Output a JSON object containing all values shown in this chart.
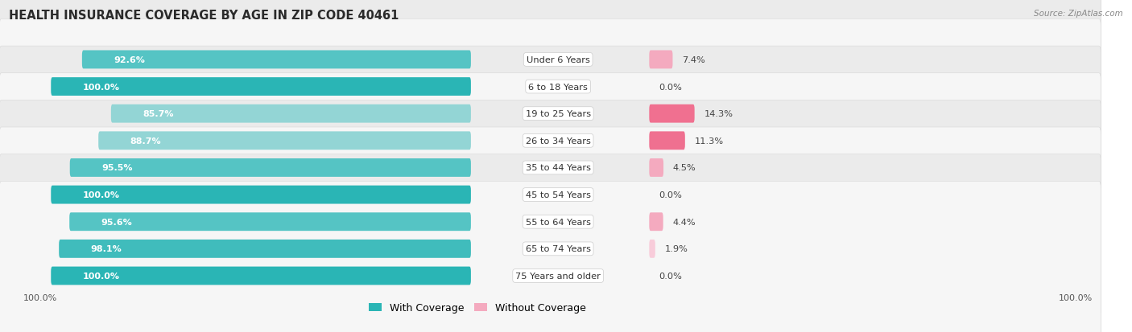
{
  "title": "HEALTH INSURANCE COVERAGE BY AGE IN ZIP CODE 40461",
  "source": "Source: ZipAtlas.com",
  "categories": [
    "Under 6 Years",
    "6 to 18 Years",
    "19 to 25 Years",
    "26 to 34 Years",
    "35 to 44 Years",
    "45 to 54 Years",
    "55 to 64 Years",
    "65 to 74 Years",
    "75 Years and older"
  ],
  "with_coverage": [
    92.6,
    100.0,
    85.7,
    88.7,
    95.5,
    100.0,
    95.6,
    98.1,
    100.0
  ],
  "without_coverage": [
    7.4,
    0.0,
    14.3,
    11.3,
    4.5,
    0.0,
    4.4,
    1.9,
    0.0
  ],
  "teal_colors": [
    "#55C4C4",
    "#2AB5B5",
    "#93D5D5",
    "#93D5D5",
    "#55C4C4",
    "#2AB5B5",
    "#55C4C4",
    "#40BCBC",
    "#2AB5B5"
  ],
  "pink_colors": [
    "#F4AABF",
    "#F8CCDA",
    "#F07090",
    "#EF7090",
    "#F4AABF",
    "#F8CCDA",
    "#F4AABF",
    "#F8CCDA",
    "#F8CCDA"
  ],
  "row_bg_dark": "#EBEBEB",
  "row_bg_light": "#F6F6F6",
  "title_fontsize": 10.5,
  "label_fontsize": 8.2,
  "legend_fontsize": 9,
  "bar_value_fontsize": 8.0
}
